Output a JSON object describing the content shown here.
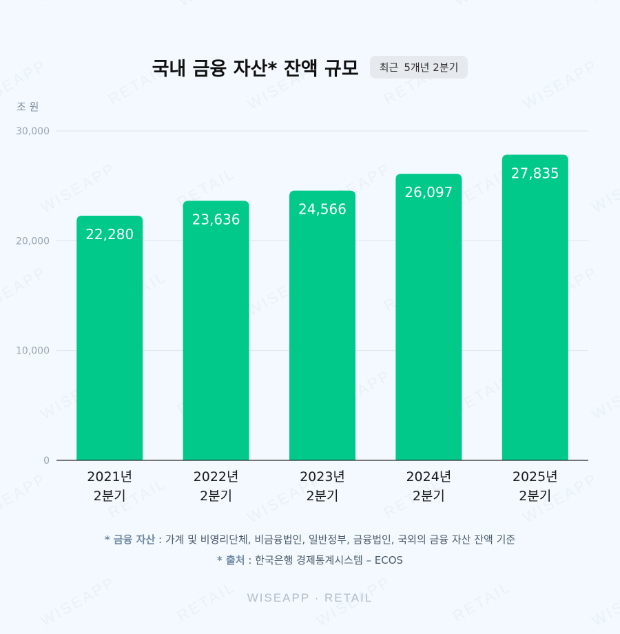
{
  "header": {
    "title": "국내 금융 자산* 잔액 규모",
    "badge": [
      "최근",
      "5개년 2분기"
    ]
  },
  "chart_data": {
    "type": "bar",
    "ylabel": "조 원",
    "ylim": [
      0,
      30000
    ],
    "yticks": [
      "0",
      "10,000",
      "20,000",
      "30,000"
    ],
    "ytick_values": [
      0,
      10000,
      20000,
      30000
    ],
    "grid": true,
    "categories": [
      [
        "2021년",
        "2분기"
      ],
      [
        "2022년",
        "2분기"
      ],
      [
        "2023년",
        "2분기"
      ],
      [
        "2024년",
        "2분기"
      ],
      [
        "2025년",
        "2분기"
      ]
    ],
    "values": [
      22280,
      23636,
      24566,
      26097,
      27835
    ],
    "value_labels": [
      "22,280",
      "23,636",
      "24,566",
      "26,097",
      "27,835"
    ],
    "bar_color": "#00c98a"
  },
  "footnotes": [
    {
      "key": "* 금융 자산",
      "text": " : 가계 및 비영리단체, 비금융법인, 일반정부, 금융법인, 국외의 금융 자산 잔액 기준"
    },
    {
      "key": "* 출처",
      "text": " : 한국은행 경제통계시스템 – ECOS"
    }
  ],
  "brand": "WISEAPP · RETAIL"
}
